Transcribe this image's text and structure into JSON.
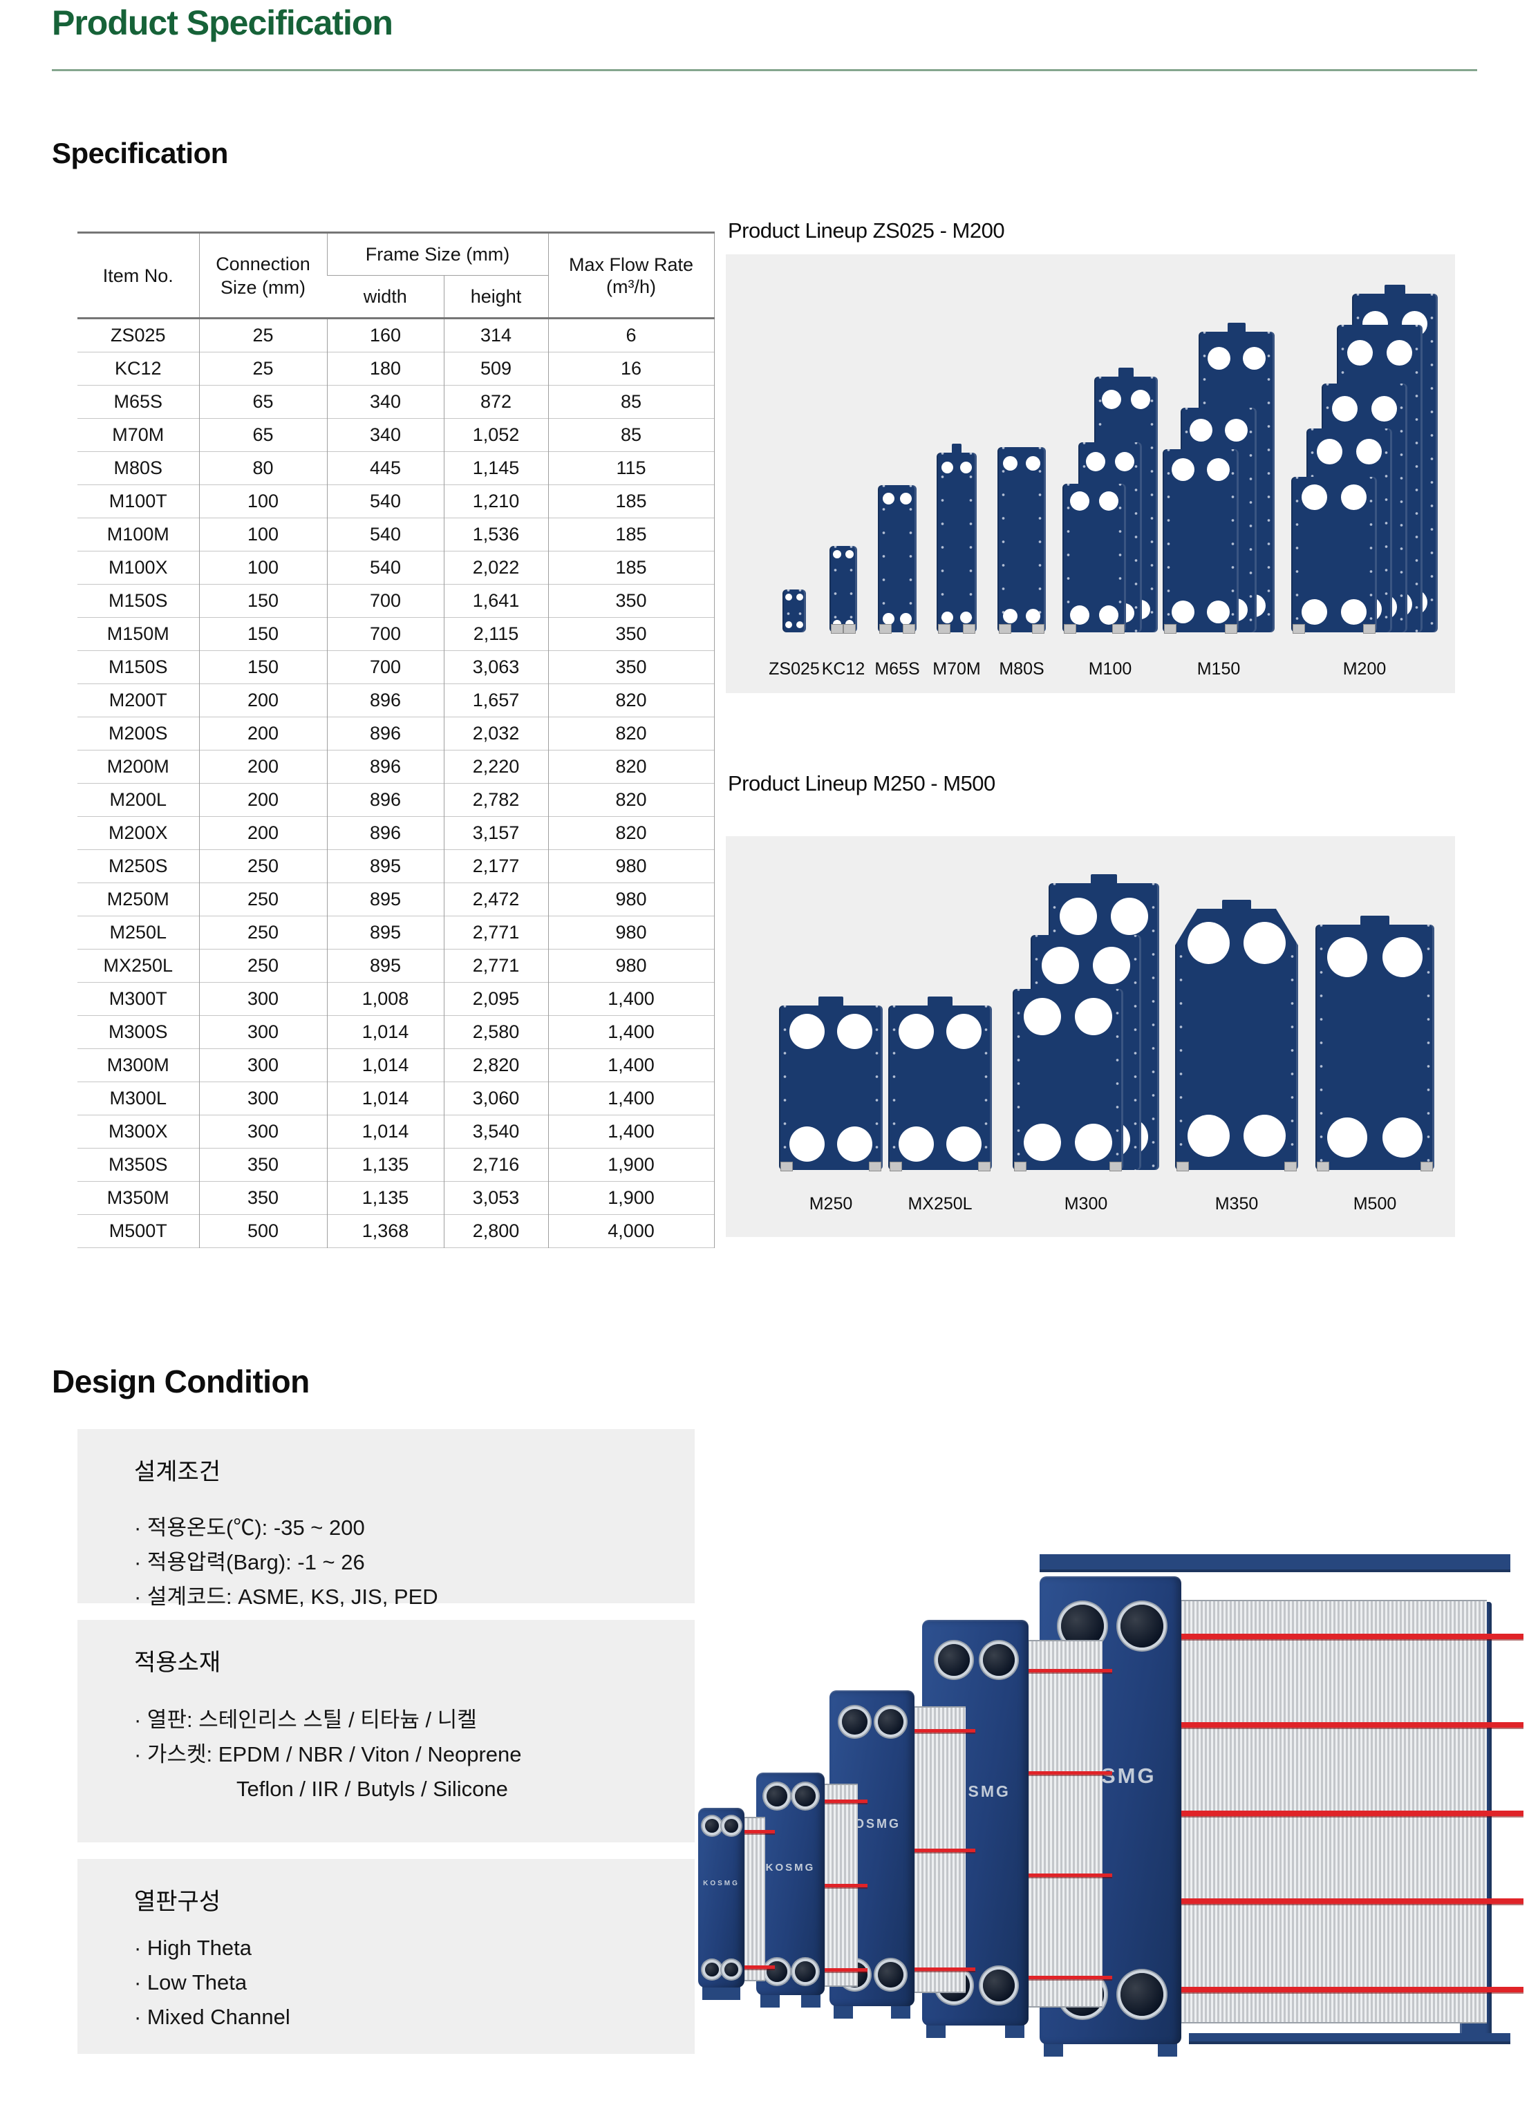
{
  "page": {
    "title": "Product Specification",
    "section_specification": "Specification",
    "section_design_condition": "Design Condition"
  },
  "spec_table": {
    "headers": {
      "item_no": "Item No.",
      "connection_size": "Connection Size (mm)",
      "frame_size": "Frame Size (mm)",
      "width": "width",
      "height": "height",
      "max_flow_1": "Max Flow Rate",
      "max_flow_2": "(m³/h)"
    },
    "rows": [
      [
        "ZS025",
        "25",
        "160",
        "314",
        "6"
      ],
      [
        "KC12",
        "25",
        "180",
        "509",
        "16"
      ],
      [
        "M65S",
        "65",
        "340",
        "872",
        "85"
      ],
      [
        "M70M",
        "65",
        "340",
        "1,052",
        "85"
      ],
      [
        "M80S",
        "80",
        "445",
        "1,145",
        "115"
      ],
      [
        "M100T",
        "100",
        "540",
        "1,210",
        "185"
      ],
      [
        "M100M",
        "100",
        "540",
        "1,536",
        "185"
      ],
      [
        "M100X",
        "100",
        "540",
        "2,022",
        "185"
      ],
      [
        "M150S",
        "150",
        "700",
        "1,641",
        "350"
      ],
      [
        "M150M",
        "150",
        "700",
        "2,115",
        "350"
      ],
      [
        "M150S",
        "150",
        "700",
        "3,063",
        "350"
      ],
      [
        "M200T",
        "200",
        "896",
        "1,657",
        "820"
      ],
      [
        "M200S",
        "200",
        "896",
        "2,032",
        "820"
      ],
      [
        "M200M",
        "200",
        "896",
        "2,220",
        "820"
      ],
      [
        "M200L",
        "200",
        "896",
        "2,782",
        "820"
      ],
      [
        "M200X",
        "200",
        "896",
        "3,157",
        "820"
      ],
      [
        "M250S",
        "250",
        "895",
        "2,177",
        "980"
      ],
      [
        "M250M",
        "250",
        "895",
        "2,472",
        "980"
      ],
      [
        "M250L",
        "250",
        "895",
        "2,771",
        "980"
      ],
      [
        "MX250L",
        "250",
        "895",
        "2,771",
        "980"
      ],
      [
        "M300T",
        "300",
        "1,008",
        "2,095",
        "1,400"
      ],
      [
        "M300S",
        "300",
        "1,014",
        "2,580",
        "1,400"
      ],
      [
        "M300M",
        "300",
        "1,014",
        "2,820",
        "1,400"
      ],
      [
        "M300L",
        "300",
        "1,014",
        "3,060",
        "1,400"
      ],
      [
        "M300X",
        "300",
        "1,014",
        "3,540",
        "1,400"
      ],
      [
        "M350S",
        "350",
        "1,135",
        "2,716",
        "1,900"
      ],
      [
        "M350M",
        "350",
        "1,135",
        "3,053",
        "1,900"
      ],
      [
        "M500T",
        "500",
        "1,368",
        "2,800",
        "4,000"
      ]
    ]
  },
  "lineups": [
    {
      "title": "Product Lineup  ZS025 - M200",
      "labels": [
        "ZS025",
        "KC12",
        "M65S",
        "M70M",
        "M80S",
        "M100",
        "M150",
        "M200"
      ]
    },
    {
      "title": "Product Lineup  M250 - M500",
      "labels": [
        "M250",
        "MX250L",
        "M300",
        "M350",
        "M500"
      ]
    }
  ],
  "design_condition": {
    "boxes": [
      {
        "title": "설계조건",
        "items": [
          "· 적용온도(℃): -35 ~ 200",
          "· 적용압력(Barg): -1 ~ 26",
          "· 설계코드: ASME, KS, JIS, PED"
        ]
      },
      {
        "title": "적용소재",
        "items": [
          "· 열판: 스테인리스 스틸 / 티타늄 / 니켈",
          "· 가스켓: EPDM / NBR / Viton / Neoprene",
          "Teflon / IIR / Butyls / Silicone"
        ]
      },
      {
        "title": "열판구성",
        "items": [
          "· High Theta",
          "· Low Theta",
          "· Mixed Channel"
        ]
      }
    ]
  },
  "render": {
    "brand": "KOSMG"
  },
  "colors": {
    "accent_green": "#166238",
    "rule_green": "#85a68e",
    "plate_navy": "#1a3a6e",
    "render_navy": "#27477e",
    "rod_red": "#e02328",
    "box_gray": "#efefef"
  }
}
